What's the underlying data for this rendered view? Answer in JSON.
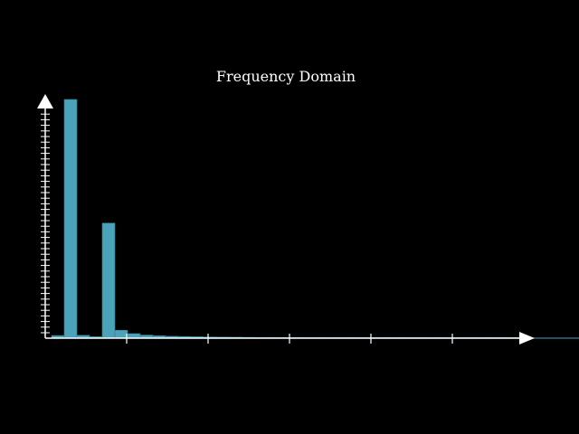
{
  "chart_data": {
    "type": "bar",
    "title": "Frequency Domain",
    "xlabel": "",
    "ylabel": "",
    "x_tick_labels": [],
    "y_tick_labels": [],
    "grid": false,
    "ylim": [
      0,
      100
    ],
    "values": [
      1.1,
      100,
      1.2,
      0.6,
      48.2,
      3.3,
      1.9,
      1.3,
      1.0,
      0.8,
      0.7,
      0.6,
      0.5,
      0.45,
      0.4,
      0.35,
      0.3,
      0.3,
      0.25,
      0.25,
      0.2,
      0.2,
      0.2,
      0.18,
      0.16,
      0.15,
      0.14,
      0.13,
      0.12,
      0.11,
      0.1,
      0.1,
      0.09,
      0.09,
      0.08,
      0.08,
      0.07,
      0.07,
      0.06,
      0.06,
      0.05,
      0.05,
      0.05,
      0.04,
      0.04,
      0.04,
      0.03,
      0.03,
      0.03,
      0.02,
      0.02,
      0.02,
      0.02,
      0.01,
      0.01,
      0.01,
      0.01,
      0.01,
      0.01,
      0.01,
      0.01,
      0.01
    ],
    "colors": {
      "bar_fill": "#4aa3b8",
      "bar_stroke": "#2d7f93",
      "axis": "#ffffff",
      "background": "#000000"
    }
  }
}
